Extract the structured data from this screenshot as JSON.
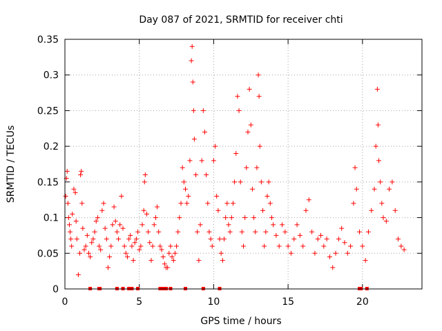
{
  "chart_data": {
    "type": "scatter",
    "title": "Day 087 of 2021, SRMTID for receiver chti",
    "xlabel": "GPS time / hours",
    "ylabel": "SRMTID / TECUs",
    "xlim": [
      0,
      24
    ],
    "ylim": [
      0,
      0.35
    ],
    "x_ticks": [
      0,
      5,
      10,
      15,
      20
    ],
    "x_tick_labels": [
      "0",
      "5",
      "10",
      "15",
      "20"
    ],
    "y_ticks": [
      0,
      0.05,
      0.1,
      0.15,
      0.2,
      0.25,
      0.3,
      0.35
    ],
    "y_tick_labels": [
      "0",
      "0.05",
      "0.1",
      "0.15",
      "0.2",
      "0.25",
      "0.3",
      "0.35"
    ],
    "grid": true,
    "marker": "+",
    "color": "#ff0000",
    "series": [
      {
        "name": "SRMTID",
        "points": [
          [
            0.05,
            0.13
          ],
          [
            0.1,
            0.155
          ],
          [
            0.15,
            0.165
          ],
          [
            0.2,
            0.12
          ],
          [
            0.25,
            0.1
          ],
          [
            0.3,
            0.09
          ],
          [
            0.35,
            0.08
          ],
          [
            0.4,
            0.07
          ],
          [
            0.45,
            0.06
          ],
          [
            0.5,
            0.105
          ],
          [
            0.6,
            0.14
          ],
          [
            0.7,
            0.135
          ],
          [
            0.75,
            0.095
          ],
          [
            0.8,
            0.07
          ],
          [
            0.9,
            0.02
          ],
          [
            1.0,
            0.05
          ],
          [
            1.05,
            0.16
          ],
          [
            1.1,
            0.165
          ],
          [
            1.15,
            0.12
          ],
          [
            1.2,
            0.085
          ],
          [
            1.3,
            0.055
          ],
          [
            1.4,
            0.06
          ],
          [
            1.5,
            0.075
          ],
          [
            1.6,
            0.05
          ],
          [
            1.7,
            0.045
          ],
          [
            1.8,
            0.065
          ],
          [
            1.9,
            0.07
          ],
          [
            2.0,
            0.08
          ],
          [
            2.1,
            0.095
          ],
          [
            2.2,
            0.1
          ],
          [
            2.3,
            0.06
          ],
          [
            2.4,
            0.055
          ],
          [
            2.5,
            0.11
          ],
          [
            2.6,
            0.12
          ],
          [
            2.7,
            0.085
          ],
          [
            2.8,
            0.07
          ],
          [
            2.9,
            0.03
          ],
          [
            3.0,
            0.045
          ],
          [
            3.1,
            0.06
          ],
          [
            3.2,
            0.09
          ],
          [
            3.3,
            0.115
          ],
          [
            3.4,
            0.095
          ],
          [
            3.5,
            0.08
          ],
          [
            3.6,
            0.07
          ],
          [
            3.7,
            0.09
          ],
          [
            3.8,
            0.13
          ],
          [
            3.9,
            0.085
          ],
          [
            4.0,
            0.06
          ],
          [
            4.1,
            0.05
          ],
          [
            4.2,
            0.045
          ],
          [
            4.3,
            0.07
          ],
          [
            4.4,
            0.075
          ],
          [
            4.5,
            0.06
          ],
          [
            4.6,
            0.04
          ],
          [
            4.7,
            0.065
          ],
          [
            4.8,
            0.07
          ],
          [
            4.9,
            0.08
          ],
          [
            5.0,
            0.055
          ],
          [
            5.1,
            0.06
          ],
          [
            5.2,
            0.09
          ],
          [
            5.3,
            0.11
          ],
          [
            5.35,
            0.15
          ],
          [
            5.4,
            0.16
          ],
          [
            5.5,
            0.105
          ],
          [
            5.6,
            0.08
          ],
          [
            5.7,
            0.065
          ],
          [
            5.8,
            0.04
          ],
          [
            5.9,
            0.06
          ],
          [
            6.0,
            0.09
          ],
          [
            6.1,
            0.1
          ],
          [
            6.2,
            0.115
          ],
          [
            6.3,
            0.08
          ],
          [
            6.4,
            0.06
          ],
          [
            6.5,
            0.055
          ],
          [
            6.6,
            0.045
          ],
          [
            6.7,
            0.035
          ],
          [
            6.8,
            0.03
          ],
          [
            6.9,
            0.03
          ],
          [
            7.0,
            0.05
          ],
          [
            7.1,
            0.06
          ],
          [
            7.2,
            0.045
          ],
          [
            7.3,
            0.04
          ],
          [
            7.4,
            0.05
          ],
          [
            7.5,
            0.06
          ],
          [
            7.6,
            0.08
          ],
          [
            7.7,
            0.1
          ],
          [
            7.8,
            0.12
          ],
          [
            7.9,
            0.17
          ],
          [
            8.0,
            0.15
          ],
          [
            8.1,
            0.14
          ],
          [
            8.2,
            0.12
          ],
          [
            8.3,
            0.13
          ],
          [
            8.4,
            0.18
          ],
          [
            8.5,
            0.32
          ],
          [
            8.55,
            0.34
          ],
          [
            8.6,
            0.29
          ],
          [
            8.65,
            0.25
          ],
          [
            8.7,
            0.21
          ],
          [
            8.8,
            0.16
          ],
          [
            8.9,
            0.08
          ],
          [
            9.0,
            0.04
          ],
          [
            9.1,
            0.09
          ],
          [
            9.2,
            0.18
          ],
          [
            9.3,
            0.25
          ],
          [
            9.4,
            0.22
          ],
          [
            9.5,
            0.16
          ],
          [
            9.6,
            0.12
          ],
          [
            9.7,
            0.08
          ],
          [
            9.8,
            0.07
          ],
          [
            9.9,
            0.06
          ],
          [
            10.0,
            0.18
          ],
          [
            10.1,
            0.2
          ],
          [
            10.2,
            0.13
          ],
          [
            10.3,
            0.11
          ],
          [
            10.4,
            0.07
          ],
          [
            10.5,
            0.05
          ],
          [
            10.6,
            0.04
          ],
          [
            10.7,
            0.07
          ],
          [
            10.8,
            0.1
          ],
          [
            10.9,
            0.12
          ],
          [
            11.0,
            0.09
          ],
          [
            11.1,
            0.08
          ],
          [
            11.2,
            0.1
          ],
          [
            11.3,
            0.12
          ],
          [
            11.4,
            0.15
          ],
          [
            11.5,
            0.19
          ],
          [
            11.6,
            0.27
          ],
          [
            11.7,
            0.25
          ],
          [
            11.8,
            0.15
          ],
          [
            11.9,
            0.08
          ],
          [
            12.0,
            0.06
          ],
          [
            12.1,
            0.1
          ],
          [
            12.2,
            0.17
          ],
          [
            12.3,
            0.22
          ],
          [
            12.4,
            0.28
          ],
          [
            12.5,
            0.23
          ],
          [
            12.6,
            0.14
          ],
          [
            12.7,
            0.1
          ],
          [
            12.8,
            0.08
          ],
          [
            12.9,
            0.17
          ],
          [
            13.0,
            0.3
          ],
          [
            13.05,
            0.27
          ],
          [
            13.1,
            0.2
          ],
          [
            13.2,
            0.15
          ],
          [
            13.3,
            0.11
          ],
          [
            13.4,
            0.06
          ],
          [
            13.5,
            0.08
          ],
          [
            13.6,
            0.13
          ],
          [
            13.7,
            0.15
          ],
          [
            13.8,
            0.12
          ],
          [
            13.9,
            0.1
          ],
          [
            14.0,
            0.09
          ],
          [
            14.2,
            0.075
          ],
          [
            14.4,
            0.06
          ],
          [
            14.6,
            0.09
          ],
          [
            14.8,
            0.08
          ],
          [
            15.0,
            0.06
          ],
          [
            15.2,
            0.05
          ],
          [
            15.4,
            0.07
          ],
          [
            15.6,
            0.09
          ],
          [
            15.8,
            0.075
          ],
          [
            16.0,
            0.06
          ],
          [
            16.2,
            0.11
          ],
          [
            16.4,
            0.125
          ],
          [
            16.6,
            0.08
          ],
          [
            16.8,
            0.05
          ],
          [
            17.0,
            0.07
          ],
          [
            17.2,
            0.075
          ],
          [
            17.4,
            0.06
          ],
          [
            17.6,
            0.07
          ],
          [
            17.8,
            0.045
          ],
          [
            18.0,
            0.03
          ],
          [
            18.2,
            0.05
          ],
          [
            18.4,
            0.07
          ],
          [
            18.6,
            0.085
          ],
          [
            18.8,
            0.065
          ],
          [
            19.0,
            0.05
          ],
          [
            19.2,
            0.06
          ],
          [
            19.4,
            0.12
          ],
          [
            19.5,
            0.17
          ],
          [
            19.6,
            0.14
          ],
          [
            19.8,
            0.08
          ],
          [
            20.0,
            0.06
          ],
          [
            20.2,
            0.04
          ],
          [
            20.4,
            0.08
          ],
          [
            20.6,
            0.11
          ],
          [
            20.8,
            0.14
          ],
          [
            20.9,
            0.2
          ],
          [
            21.0,
            0.28
          ],
          [
            21.05,
            0.23
          ],
          [
            21.1,
            0.18
          ],
          [
            21.2,
            0.15
          ],
          [
            21.3,
            0.12
          ],
          [
            21.4,
            0.1
          ],
          [
            21.6,
            0.095
          ],
          [
            21.8,
            0.14
          ],
          [
            22.0,
            0.15
          ],
          [
            22.2,
            0.11
          ],
          [
            22.4,
            0.07
          ],
          [
            22.6,
            0.06
          ],
          [
            22.8,
            0.055
          ]
        ]
      }
    ],
    "zero_markers_x": [
      1.7,
      2.3,
      2.35,
      3.5,
      3.9,
      4.3,
      4.5,
      4.9,
      6.4,
      6.6,
      6.8,
      7.1,
      8.1,
      9.3,
      10.4,
      19.8,
      19.9,
      20.3
    ]
  }
}
